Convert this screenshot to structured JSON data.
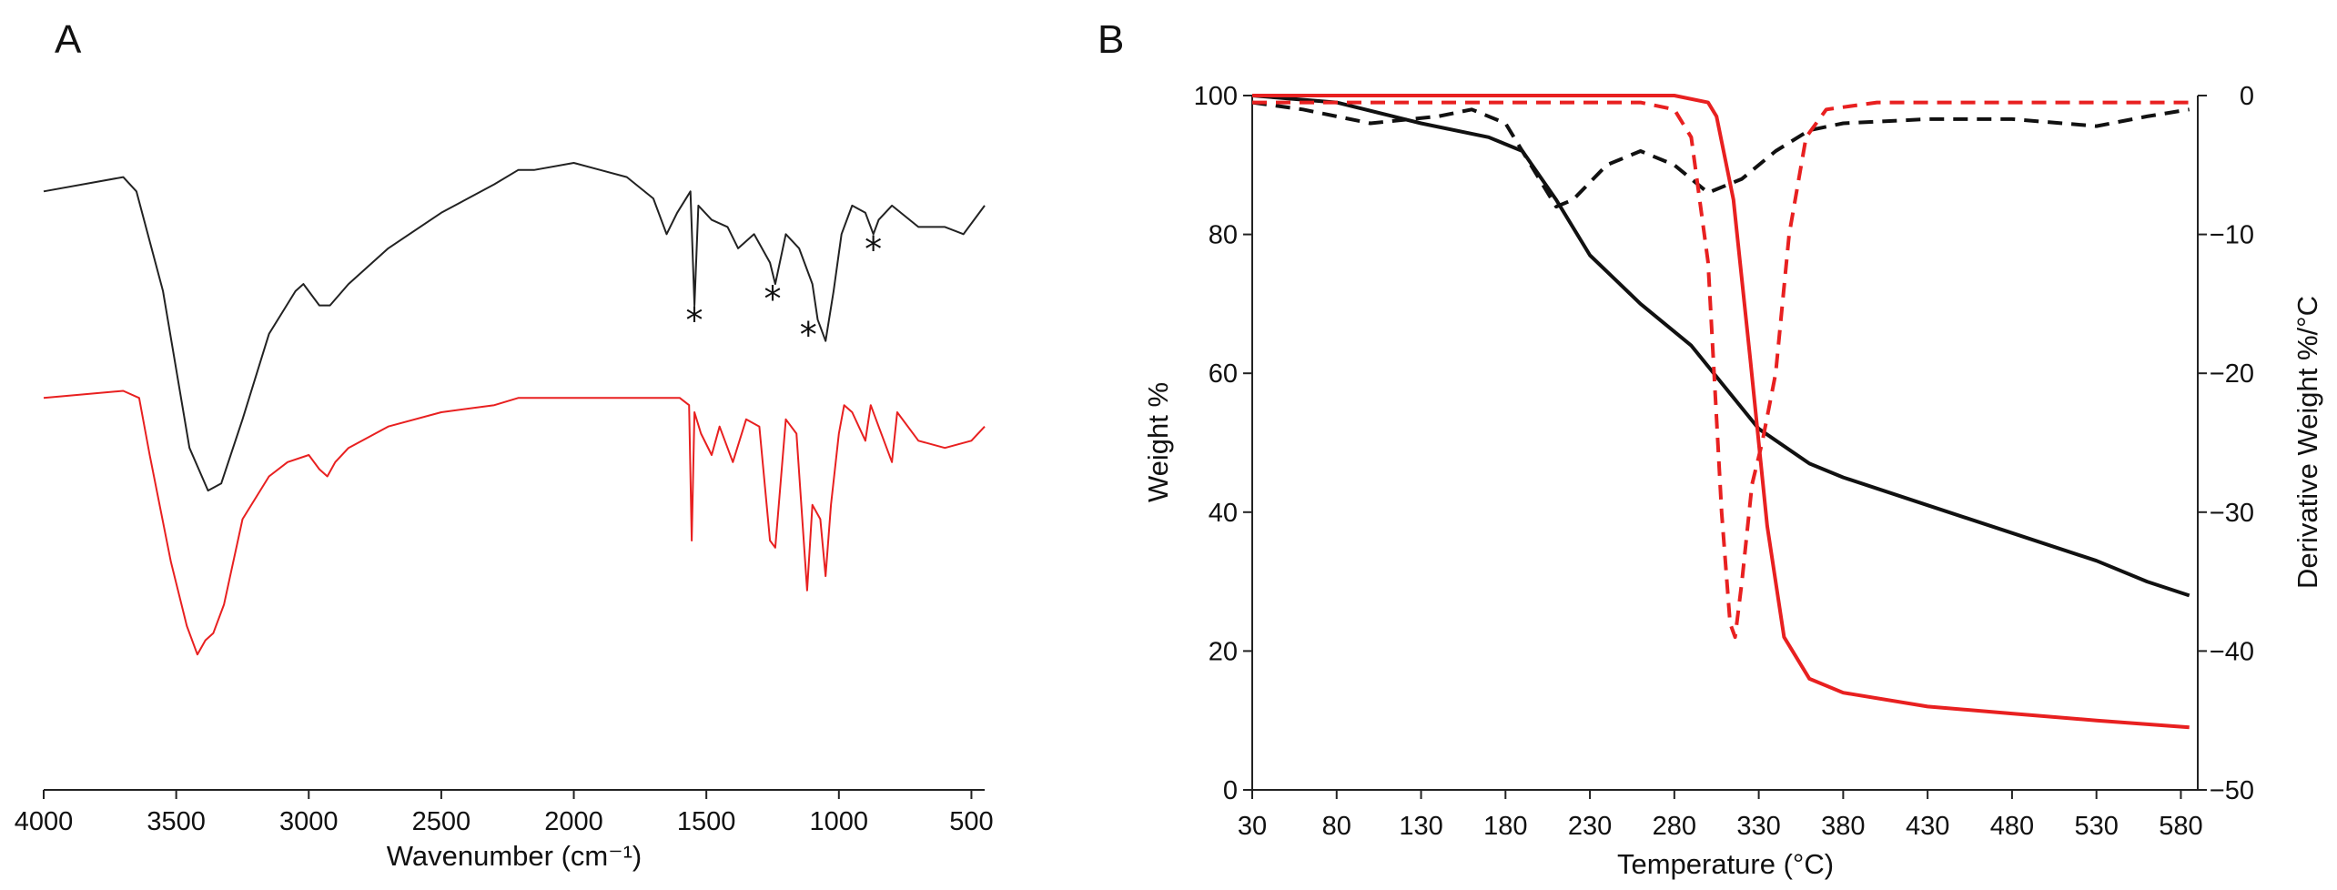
{
  "panel_labels": {
    "a": "A",
    "b": "B"
  },
  "chart_data": [
    {
      "type": "line",
      "panel": "A",
      "title": "",
      "xlabel": "Wavenumber  (cm⁻¹)",
      "ylabel": "",
      "xlim": [
        4000,
        450
      ],
      "x_reversed": true,
      "x_ticks": [
        4000,
        3500,
        3000,
        2500,
        2000,
        1500,
        1000,
        500
      ],
      "x_tick_labels": [
        "4000",
        "3500",
        "3000",
        "2500",
        "2000",
        "1500",
        "1000",
        "500"
      ],
      "ylim": [
        0,
        100
      ],
      "y_axis_visible": false,
      "series": [
        {
          "name": "upper spectrum",
          "color": "#222222",
          "points": [
            [
              4000,
              84
            ],
            [
              3700,
              86
            ],
            [
              3650,
              84
            ],
            [
              3550,
              70
            ],
            [
              3450,
              48
            ],
            [
              3380,
              42
            ],
            [
              3330,
              43
            ],
            [
              3250,
              52
            ],
            [
              3150,
              64
            ],
            [
              3050,
              70
            ],
            [
              3020,
              71
            ],
            [
              2960,
              68
            ],
            [
              2920,
              68
            ],
            [
              2850,
              71
            ],
            [
              2700,
              76
            ],
            [
              2500,
              81
            ],
            [
              2300,
              85
            ],
            [
              2210,
              87
            ],
            [
              2150,
              87
            ],
            [
              2000,
              88
            ],
            [
              1900,
              87
            ],
            [
              1800,
              86
            ],
            [
              1700,
              83
            ],
            [
              1650,
              78
            ],
            [
              1610,
              81
            ],
            [
              1560,
              84
            ],
            [
              1545,
              68
            ],
            [
              1530,
              82
            ],
            [
              1480,
              80
            ],
            [
              1420,
              79
            ],
            [
              1380,
              76
            ],
            [
              1320,
              78
            ],
            [
              1260,
              74
            ],
            [
              1240,
              71
            ],
            [
              1200,
              78
            ],
            [
              1150,
              76
            ],
            [
              1100,
              71
            ],
            [
              1080,
              66
            ],
            [
              1050,
              63
            ],
            [
              1020,
              70
            ],
            [
              990,
              78
            ],
            [
              950,
              82
            ],
            [
              900,
              81
            ],
            [
              870,
              78
            ],
            [
              850,
              80
            ],
            [
              800,
              82
            ],
            [
              700,
              79
            ],
            [
              600,
              79
            ],
            [
              530,
              78
            ],
            [
              450,
              82
            ]
          ],
          "markers": [
            {
              "label": "*",
              "x": 1545,
              "y": 66
            },
            {
              "label": "*",
              "x": 1250,
              "y": 69
            },
            {
              "label": "*",
              "x": 1115,
              "y": 64
            },
            {
              "label": "*",
              "x": 870,
              "y": 76
            }
          ]
        },
        {
          "name": "lower spectrum",
          "color": "#e82020",
          "points": [
            [
              4000,
              55
            ],
            [
              3700,
              56
            ],
            [
              3640,
              55
            ],
            [
              3600,
              47
            ],
            [
              3520,
              32
            ],
            [
              3460,
              23
            ],
            [
              3420,
              19
            ],
            [
              3390,
              21
            ],
            [
              3360,
              22
            ],
            [
              3320,
              26
            ],
            [
              3250,
              38
            ],
            [
              3150,
              44
            ],
            [
              3080,
              46
            ],
            [
              3000,
              47
            ],
            [
              2960,
              45
            ],
            [
              2930,
              44
            ],
            [
              2900,
              46
            ],
            [
              2850,
              48
            ],
            [
              2700,
              51
            ],
            [
              2500,
              53
            ],
            [
              2300,
              54
            ],
            [
              2210,
              55
            ],
            [
              2150,
              55
            ],
            [
              2000,
              55
            ],
            [
              1900,
              55
            ],
            [
              1750,
              55
            ],
            [
              1600,
              55
            ],
            [
              1565,
              54
            ],
            [
              1555,
              35
            ],
            [
              1545,
              53
            ],
            [
              1520,
              50
            ],
            [
              1480,
              47
            ],
            [
              1450,
              51
            ],
            [
              1400,
              46
            ],
            [
              1350,
              52
            ],
            [
              1300,
              51
            ],
            [
              1260,
              35
            ],
            [
              1240,
              34
            ],
            [
              1200,
              52
            ],
            [
              1160,
              50
            ],
            [
              1120,
              28
            ],
            [
              1100,
              40
            ],
            [
              1070,
              38
            ],
            [
              1050,
              30
            ],
            [
              1030,
              40
            ],
            [
              1000,
              50
            ],
            [
              980,
              54
            ],
            [
              950,
              53
            ],
            [
              900,
              49
            ],
            [
              880,
              54
            ],
            [
              850,
              51
            ],
            [
              800,
              46
            ],
            [
              780,
              53
            ],
            [
              700,
              49
            ],
            [
              600,
              48
            ],
            [
              500,
              49
            ],
            [
              450,
              51
            ]
          ]
        }
      ]
    },
    {
      "type": "line",
      "panel": "B",
      "title": "",
      "xlabel": "Temperature (°C)",
      "ylabel": "Weight %",
      "y2label": "Derivative Weight %/°C",
      "xlim": [
        30,
        590
      ],
      "x_ticks": [
        30,
        80,
        130,
        180,
        230,
        280,
        330,
        380,
        430,
        480,
        530,
        580
      ],
      "x_tick_labels": [
        "30",
        "80",
        "130",
        "180",
        "230",
        "280",
        "330",
        "380",
        "430",
        "480",
        "530",
        "580"
      ],
      "ylim": [
        0,
        100
      ],
      "y_ticks": [
        0,
        20,
        40,
        60,
        80,
        100
      ],
      "y_tick_labels": [
        "0",
        "20",
        "40",
        "60",
        "80",
        "100"
      ],
      "y2lim": [
        -50,
        0
      ],
      "y2_ticks": [
        0,
        -10,
        -20,
        -30,
        -40,
        -50
      ],
      "y2_tick_labels": [
        "0",
        "−10",
        "−20",
        "−30",
        "−40",
        "−50"
      ],
      "series": [
        {
          "name": "black weight %",
          "color": "#111111",
          "dash": "solid",
          "axis": "y",
          "points": [
            [
              30,
              100
            ],
            [
              80,
              99
            ],
            [
              130,
              96
            ],
            [
              170,
              94
            ],
            [
              190,
              92
            ],
            [
              210,
              85
            ],
            [
              230,
              77
            ],
            [
              260,
              70
            ],
            [
              290,
              64
            ],
            [
              310,
              58
            ],
            [
              330,
              52
            ],
            [
              360,
              47
            ],
            [
              380,
              45
            ],
            [
              430,
              41
            ],
            [
              480,
              37
            ],
            [
              530,
              33
            ],
            [
              560,
              30
            ],
            [
              585,
              28
            ]
          ]
        },
        {
          "name": "red weight %",
          "color": "#e82020",
          "dash": "solid",
          "axis": "y",
          "points": [
            [
              30,
              100
            ],
            [
              280,
              100
            ],
            [
              300,
              99
            ],
            [
              305,
              97
            ],
            [
              315,
              85
            ],
            [
              325,
              62
            ],
            [
              335,
              38
            ],
            [
              345,
              22
            ],
            [
              360,
              16
            ],
            [
              380,
              14
            ],
            [
              430,
              12
            ],
            [
              480,
              11
            ],
            [
              530,
              10
            ],
            [
              585,
              9
            ]
          ]
        },
        {
          "name": "black derivative",
          "color": "#111111",
          "dash": "dashed",
          "axis": "y2",
          "points": [
            [
              30,
              -0.5
            ],
            [
              60,
              -1
            ],
            [
              100,
              -2
            ],
            [
              140,
              -1.5
            ],
            [
              160,
              -1
            ],
            [
              180,
              -2
            ],
            [
              200,
              -6
            ],
            [
              210,
              -8
            ],
            [
              220,
              -7.5
            ],
            [
              240,
              -5
            ],
            [
              260,
              -4
            ],
            [
              280,
              -5
            ],
            [
              300,
              -7
            ],
            [
              320,
              -6
            ],
            [
              340,
              -4
            ],
            [
              360,
              -2.5
            ],
            [
              380,
              -2
            ],
            [
              430,
              -1.7
            ],
            [
              480,
              -1.7
            ],
            [
              530,
              -2.2
            ],
            [
              560,
              -1.5
            ],
            [
              585,
              -1
            ]
          ]
        },
        {
          "name": "red derivative",
          "color": "#e82020",
          "dash": "dashed",
          "axis": "y2",
          "points": [
            [
              30,
              -0.5
            ],
            [
              100,
              -0.5
            ],
            [
              200,
              -0.5
            ],
            [
              260,
              -0.5
            ],
            [
              280,
              -1
            ],
            [
              290,
              -3
            ],
            [
              300,
              -12
            ],
            [
              308,
              -30
            ],
            [
              313,
              -38
            ],
            [
              316,
              -39
            ],
            [
              320,
              -35
            ],
            [
              326,
              -28
            ],
            [
              332,
              -25
            ],
            [
              340,
              -20
            ],
            [
              348,
              -10
            ],
            [
              358,
              -3
            ],
            [
              370,
              -1
            ],
            [
              400,
              -0.5
            ],
            [
              500,
              -0.5
            ],
            [
              585,
              -0.5
            ]
          ]
        }
      ]
    }
  ]
}
